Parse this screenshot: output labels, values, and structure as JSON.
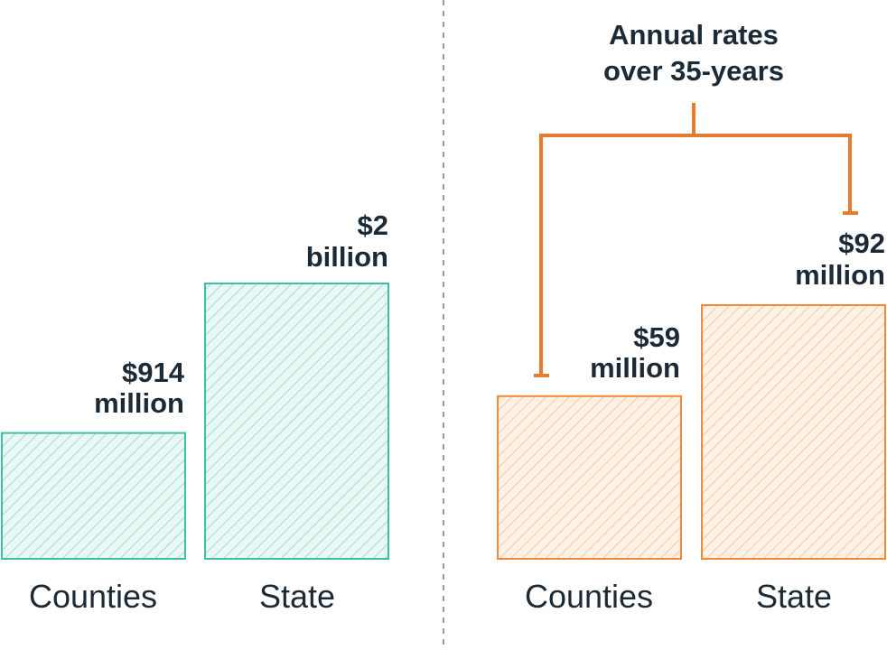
{
  "chart_data": [
    {
      "type": "bar",
      "categories": [
        "Counties",
        "State"
      ],
      "values": [
        914,
        2000
      ],
      "units": "million USD",
      "value_labels": [
        [
          "$914",
          "million"
        ],
        [
          "$2",
          "billion"
        ]
      ],
      "color": "#3cbfa6"
    },
    {
      "type": "bar",
      "categories": [
        "Counties",
        "State"
      ],
      "values": [
        59,
        92
      ],
      "units": "million USD",
      "value_labels": [
        [
          "$59",
          "million"
        ],
        [
          "$92",
          "million"
        ]
      ],
      "color": "#ef8a3c",
      "annotation": [
        "Annual rates",
        "over 35-years"
      ]
    }
  ],
  "colors": {
    "teal": "#3cbfa6",
    "teal_fill": "#e9f8f4",
    "orange": "#ef8a3c",
    "orange_fill": "#fef1e6",
    "bracket": "#e87c2e",
    "divider": "#9a9a9a",
    "text": "#1b2a35"
  }
}
